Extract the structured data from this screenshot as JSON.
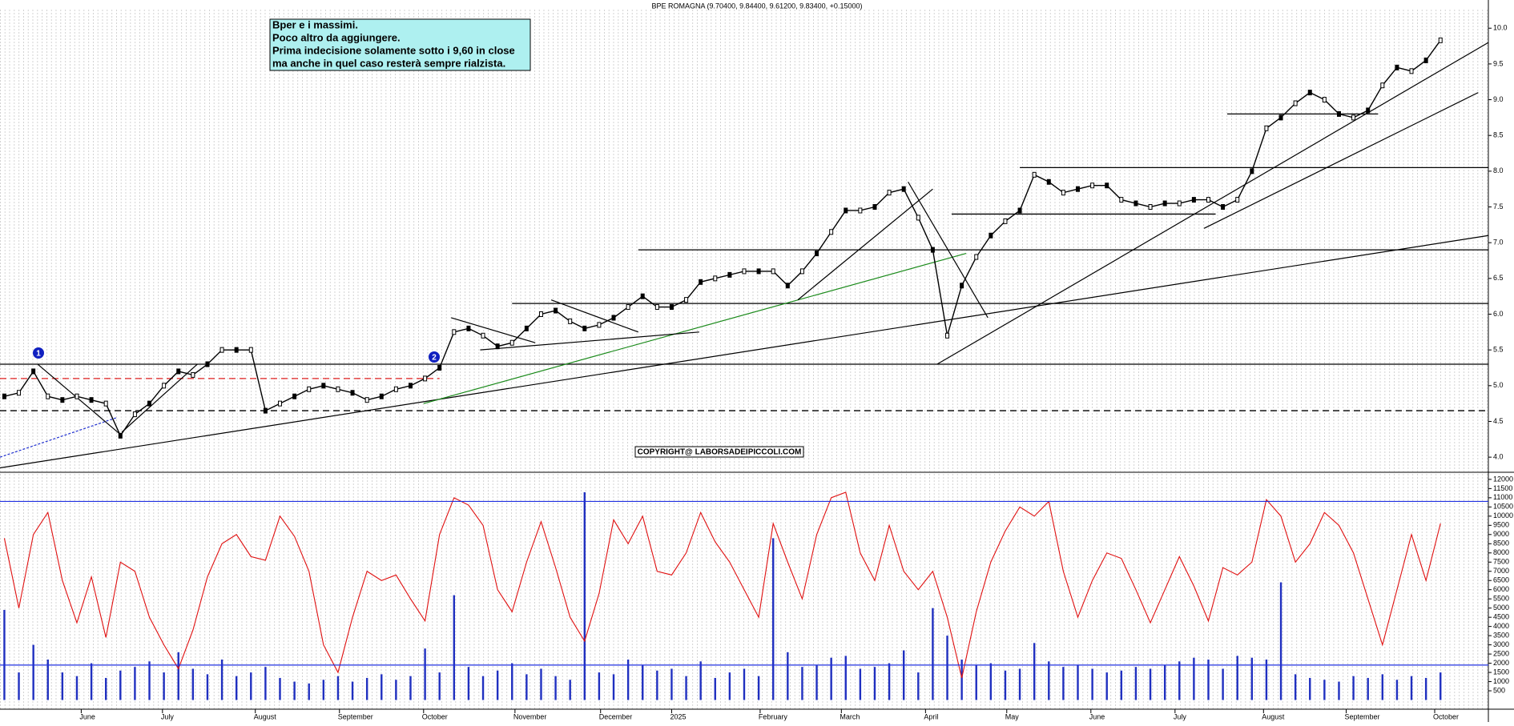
{
  "chart_data": [
    {
      "type": "line",
      "title": "BPE ROMAGNA (9.70400, 9.84400, 9.61200, 9.83400, +0.15000)",
      "annotation": [
        "Bper e i massimi.",
        "Poco altro da aggiungere.",
        "Prima indecisione solamente sotto i 9,60 in close",
        "ma anche in quel caso resterà sempre rialzista."
      ],
      "copyright": "COPYRIGHT@ LABORSADEIPICCOLI.COM",
      "markers": [
        "1",
        "2"
      ],
      "series": [
        {
          "name": "BPE ROMAGNA",
          "color": "#000000",
          "values": [
            4.85,
            4.9,
            5.2,
            4.85,
            4.8,
            4.85,
            4.8,
            4.75,
            4.3,
            4.6,
            4.75,
            5.0,
            5.2,
            5.15,
            5.3,
            5.5,
            5.5,
            5.5,
            4.65,
            4.75,
            4.85,
            4.95,
            5.0,
            4.95,
            4.9,
            4.8,
            4.85,
            4.95,
            5.0,
            5.1,
            5.25,
            5.75,
            5.8,
            5.7,
            5.55,
            5.6,
            5.8,
            6.0,
            6.05,
            5.9,
            5.8,
            5.85,
            5.95,
            6.1,
            6.25,
            6.1,
            6.1,
            6.2,
            6.45,
            6.5,
            6.55,
            6.6,
            6.6,
            6.6,
            6.4,
            6.6,
            6.85,
            7.15,
            7.45,
            7.45,
            7.5,
            7.7,
            7.75,
            7.35,
            6.9,
            5.7,
            6.4,
            6.8,
            7.1,
            7.3,
            7.45,
            7.95,
            7.85,
            7.7,
            7.75,
            7.8,
            7.8,
            7.6,
            7.55,
            7.5,
            7.55,
            7.55,
            7.6,
            7.6,
            7.5,
            7.6,
            8.0,
            8.6,
            8.75,
            8.95,
            9.1,
            9.0,
            8.8,
            8.75,
            8.85,
            9.2,
            9.45,
            9.4,
            9.55,
            9.83
          ]
        }
      ],
      "xlim": [
        -0.3,
        102.3
      ],
      "xticks": [
        {
          "value": 5.3,
          "label": "June"
        },
        {
          "value": 10.9,
          "label": "July"
        },
        {
          "value": 17.3,
          "label": "August"
        },
        {
          "value": 23.1,
          "label": "September"
        },
        {
          "value": 28.9,
          "label": "October"
        },
        {
          "value": 35.2,
          "label": "November"
        },
        {
          "value": 41.1,
          "label": "December"
        },
        {
          "value": 46,
          "label": "2025"
        },
        {
          "value": 52.1,
          "label": "February"
        },
        {
          "value": 57.7,
          "label": "March"
        },
        {
          "value": 63.5,
          "label": "April"
        },
        {
          "value": 69.1,
          "label": "May"
        },
        {
          "value": 74.9,
          "label": "June"
        },
        {
          "value": 80.7,
          "label": "July"
        },
        {
          "value": 86.8,
          "label": "August"
        },
        {
          "value": 92.5,
          "label": "September"
        },
        {
          "value": 98.6,
          "label": "October"
        }
      ],
      "ylim": [
        3.8,
        10.26
      ],
      "yticks": [
        {
          "value": 4,
          "label": "4.0"
        },
        {
          "value": 4.5,
          "label": "4.5"
        },
        {
          "value": 5,
          "label": "5.0"
        },
        {
          "value": 5.5,
          "label": "5.5"
        },
        {
          "value": 6,
          "label": "6.0"
        },
        {
          "value": 6.5,
          "label": "6.5"
        },
        {
          "value": 7,
          "label": "7.0"
        },
        {
          "value": 7.5,
          "label": "7.5"
        },
        {
          "value": 8,
          "label": "8.0"
        },
        {
          "value": 8.5,
          "label": "8.5"
        },
        {
          "value": 9,
          "label": "9.0"
        },
        {
          "value": 9.5,
          "label": "9.5"
        },
        {
          "value": 10,
          "label": "10.0"
        }
      ],
      "hlines": [
        {
          "value": 5.3,
          "from": -0.3,
          "to": 102.3,
          "color": "#000000"
        },
        {
          "value": 6.15,
          "from": 35,
          "to": 102.3,
          "color": "#000000"
        },
        {
          "value": 6.9,
          "from": 43.7,
          "to": 102.3,
          "color": "#000000"
        },
        {
          "value": 8.05,
          "from": 70,
          "to": 102.3,
          "color": "#000000"
        },
        {
          "value": 7.4,
          "from": 65.3,
          "to": 83.5,
          "color": "#000000"
        },
        {
          "value": 8.8,
          "from": 84.3,
          "to": 94.7,
          "color": "#000000"
        },
        {
          "value": 5.1,
          "from": -0.3,
          "to": 30,
          "color": "#e02020",
          "dashed": true
        },
        {
          "value": 4.65,
          "from": -0.3,
          "to": 102.3,
          "color": "#000000",
          "dashed": true
        }
      ],
      "trendlines": [
        {
          "x": [
            -0.3,
            102.3
          ],
          "y": [
            3.85,
            7.1
          ],
          "color": "#000000"
        },
        {
          "x": [
            64.3,
            102.3
          ],
          "y": [
            5.3,
            9.8
          ],
          "color": "#000000"
        },
        {
          "x": [
            82.7,
            101.6
          ],
          "y": [
            7.2,
            9.1
          ],
          "color": "#000000"
        },
        {
          "x": [
            28.9,
            66.3
          ],
          "y": [
            4.75,
            6.85
          ],
          "color": "#1a8a1a"
        },
        {
          "x": [
            -0.3,
            7.7
          ],
          "y": [
            4.0,
            4.55
          ],
          "color": "#2030d0",
          "dashed": true
        },
        {
          "x": [
            2.3,
            8.1
          ],
          "y": [
            5.3,
            4.3
          ],
          "color": "#000000"
        },
        {
          "x": [
            8.1,
            13.3
          ],
          "y": [
            4.35,
            5.3
          ],
          "color": "#000000"
        },
        {
          "x": [
            30.8,
            36.6
          ],
          "y": [
            5.95,
            5.6
          ],
          "color": "#000000"
        },
        {
          "x": [
            32.8,
            47.9
          ],
          "y": [
            5.5,
            5.75
          ],
          "color": "#000000"
        },
        {
          "x": [
            37.7,
            43.7
          ],
          "y": [
            6.2,
            5.75
          ],
          "color": "#000000"
        },
        {
          "x": [
            54.7,
            64
          ],
          "y": [
            6.2,
            7.75
          ],
          "color": "#000000"
        },
        {
          "x": [
            62.3,
            67.8
          ],
          "y": [
            7.85,
            5.95
          ],
          "color": "#000000"
        }
      ]
    },
    {
      "type": "bar+line",
      "series": [
        {
          "name": "Volume",
          "color": "#2030c0",
          "values": [
            4900,
            1500,
            3000,
            2200,
            1500,
            1300,
            2000,
            1200,
            1600,
            1800,
            2100,
            1500,
            2600,
            1700,
            1400,
            2200,
            1300,
            1500,
            1800,
            1200,
            1000,
            900,
            1100,
            1300,
            1000,
            1200,
            1400,
            1100,
            1300,
            2800,
            1500,
            5700,
            1800,
            1300,
            1600,
            2000,
            1400,
            1700,
            1300,
            1100,
            11300,
            1500,
            1400,
            2200,
            1900,
            1600,
            1700,
            1300,
            2100,
            1200,
            1500,
            1700,
            1300,
            8800,
            2600,
            1800,
            1900,
            2300,
            2400,
            1700,
            1800,
            2000,
            2700,
            1500,
            5000,
            3500,
            2200,
            1900,
            2000,
            1600,
            1700,
            3100,
            2100,
            1800,
            1900,
            1700,
            1500,
            1600,
            1800,
            1700,
            1900,
            2100,
            2300,
            2200,
            1700,
            2400,
            2300,
            2200,
            6400,
            1400,
            1200,
            1100,
            1000,
            1300,
            1200,
            1400,
            1100,
            1300,
            1200,
            1500
          ]
        },
        {
          "name": "Oscillator",
          "color": "#e01010",
          "values": [
            8800,
            5000,
            9000,
            10200,
            6500,
            4200,
            6700,
            3400,
            7500,
            7000,
            4500,
            3000,
            1700,
            3800,
            6700,
            8500,
            9000,
            7800,
            7600,
            10000,
            8900,
            7000,
            3000,
            1500,
            4500,
            7000,
            6500,
            6800,
            5500,
            4300,
            9000,
            11000,
            10600,
            9500,
            6000,
            4800,
            7500,
            9700,
            7200,
            4500,
            3200,
            5800,
            9800,
            8500,
            10000,
            7000,
            6800,
            8000,
            10200,
            8600,
            7500,
            6000,
            4500,
            9600,
            7500,
            5500,
            9000,
            11000,
            11300,
            8000,
            6500,
            9500,
            7000,
            6000,
            7000,
            4500,
            1200,
            4800,
            7500,
            9200,
            10500,
            10000,
            10800,
            7000,
            4500,
            6500,
            8000,
            7700,
            6000,
            4200,
            6000,
            7800,
            6200,
            4300,
            7200,
            6800,
            7500,
            10900,
            10000,
            7500,
            8500,
            10200,
            9500,
            8000,
            5500,
            3000,
            6000,
            9000,
            6500,
            9600
          ]
        }
      ],
      "xlim": [
        -0.3,
        102.3
      ],
      "ylim": [
        -500,
        12300
      ],
      "yticks": [
        500,
        1000,
        1500,
        2000,
        2500,
        3000,
        3500,
        4000,
        4500,
        5000,
        5500,
        6000,
        6500,
        7000,
        7500,
        8000,
        8500,
        9000,
        9500,
        10000,
        10500,
        11000,
        11500,
        12000
      ],
      "hlines": [
        {
          "value": 10800,
          "color": "#2030e0"
        },
        {
          "value": 1900,
          "color": "#2030e0"
        }
      ]
    }
  ]
}
